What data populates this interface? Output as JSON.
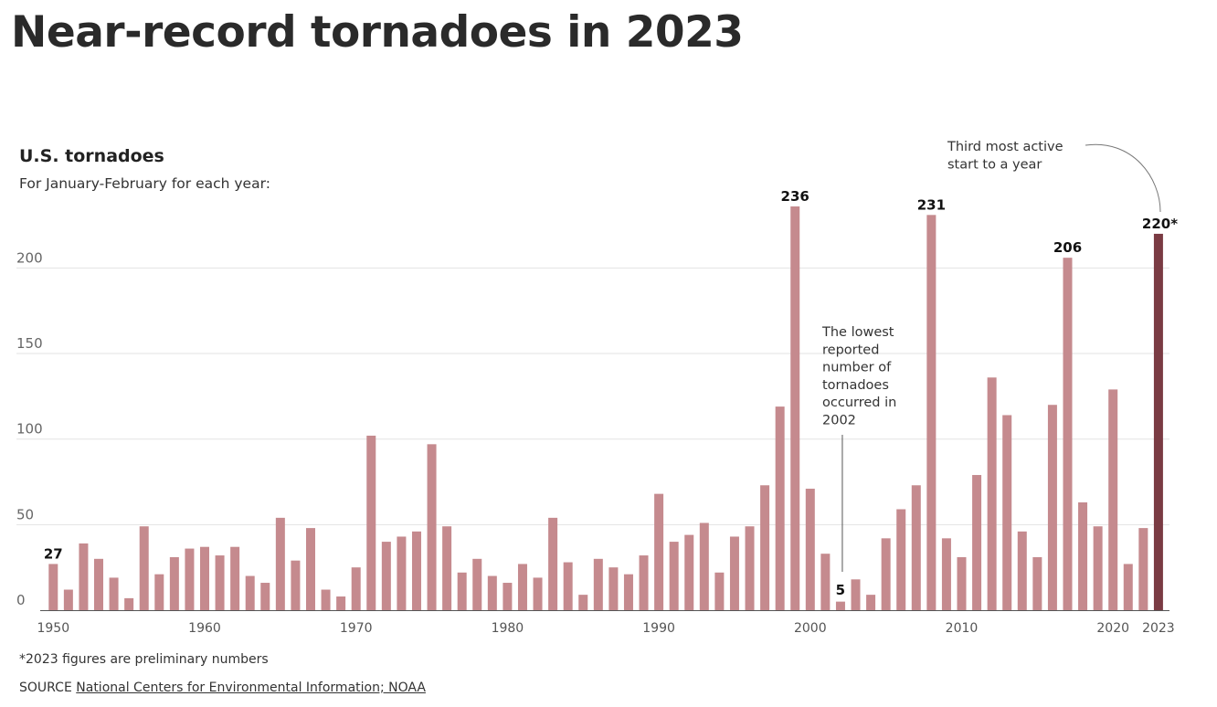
{
  "headline": "Near-record tornadoes in 2023",
  "chart_data": {
    "type": "bar",
    "title": "U.S. tornadoes",
    "subtitle": "For January-February for each year:",
    "xlabel": "",
    "ylabel": "",
    "ylim": [
      0,
      240
    ],
    "yticks": [
      0,
      50,
      100,
      150,
      200
    ],
    "x_tick_labels": [
      "1950",
      "1960",
      "1970",
      "1980",
      "1990",
      "2000",
      "2010",
      "2020",
      "2023"
    ],
    "categories": [
      "1950",
      "1951",
      "1952",
      "1953",
      "1954",
      "1955",
      "1956",
      "1957",
      "1958",
      "1959",
      "1960",
      "1961",
      "1962",
      "1963",
      "1964",
      "1965",
      "1966",
      "1967",
      "1968",
      "1969",
      "1970",
      "1971",
      "1972",
      "1973",
      "1974",
      "1975",
      "1976",
      "1977",
      "1978",
      "1979",
      "1980",
      "1981",
      "1982",
      "1983",
      "1984",
      "1985",
      "1986",
      "1987",
      "1988",
      "1989",
      "1990",
      "1991",
      "1992",
      "1993",
      "1994",
      "1995",
      "1996",
      "1997",
      "1998",
      "1999",
      "2000",
      "2001",
      "2002",
      "2003",
      "2004",
      "2005",
      "2006",
      "2007",
      "2008",
      "2009",
      "2010",
      "2011",
      "2012",
      "2013",
      "2014",
      "2015",
      "2016",
      "2017",
      "2018",
      "2019",
      "2020",
      "2021",
      "2022",
      "2023"
    ],
    "values": [
      27,
      12,
      39,
      30,
      19,
      7,
      49,
      21,
      31,
      36,
      37,
      32,
      37,
      20,
      16,
      54,
      29,
      48,
      12,
      8,
      25,
      102,
      40,
      43,
      46,
      97,
      49,
      22,
      30,
      20,
      16,
      27,
      19,
      54,
      28,
      9,
      30,
      25,
      21,
      32,
      68,
      40,
      44,
      51,
      22,
      43,
      49,
      73,
      119,
      236,
      71,
      33,
      5,
      18,
      9,
      42,
      59,
      73,
      231,
      42,
      31,
      79,
      136,
      114,
      46,
      31,
      120,
      206,
      63,
      49,
      129,
      27,
      48,
      220
    ],
    "highlight_category": "2023",
    "colors": {
      "bar": "#c58a8e",
      "highlight": "#7a3b43",
      "grid": "#e3e3e3",
      "baseline": "#555555"
    },
    "data_labels": [
      {
        "category": "1950",
        "text": "27"
      },
      {
        "category": "1999",
        "text": "236"
      },
      {
        "category": "2002",
        "text": "5"
      },
      {
        "category": "2008",
        "text": "231"
      },
      {
        "category": "2017",
        "text": "206"
      },
      {
        "category": "2023",
        "text": "220*"
      }
    ],
    "annotations": {
      "lowest": {
        "category": "2002",
        "lines": [
          "The lowest",
          "reported",
          "number of",
          "tornadoes",
          "occurred in",
          "2002"
        ]
      },
      "third": {
        "category": "2023",
        "lines": [
          "Third most active",
          "start to a year"
        ]
      }
    }
  },
  "footnote": "*2023 figures are preliminary numbers",
  "source": {
    "prefix": "SOURCE",
    "link_text": "National Centers for Environmental Information; NOAA"
  }
}
